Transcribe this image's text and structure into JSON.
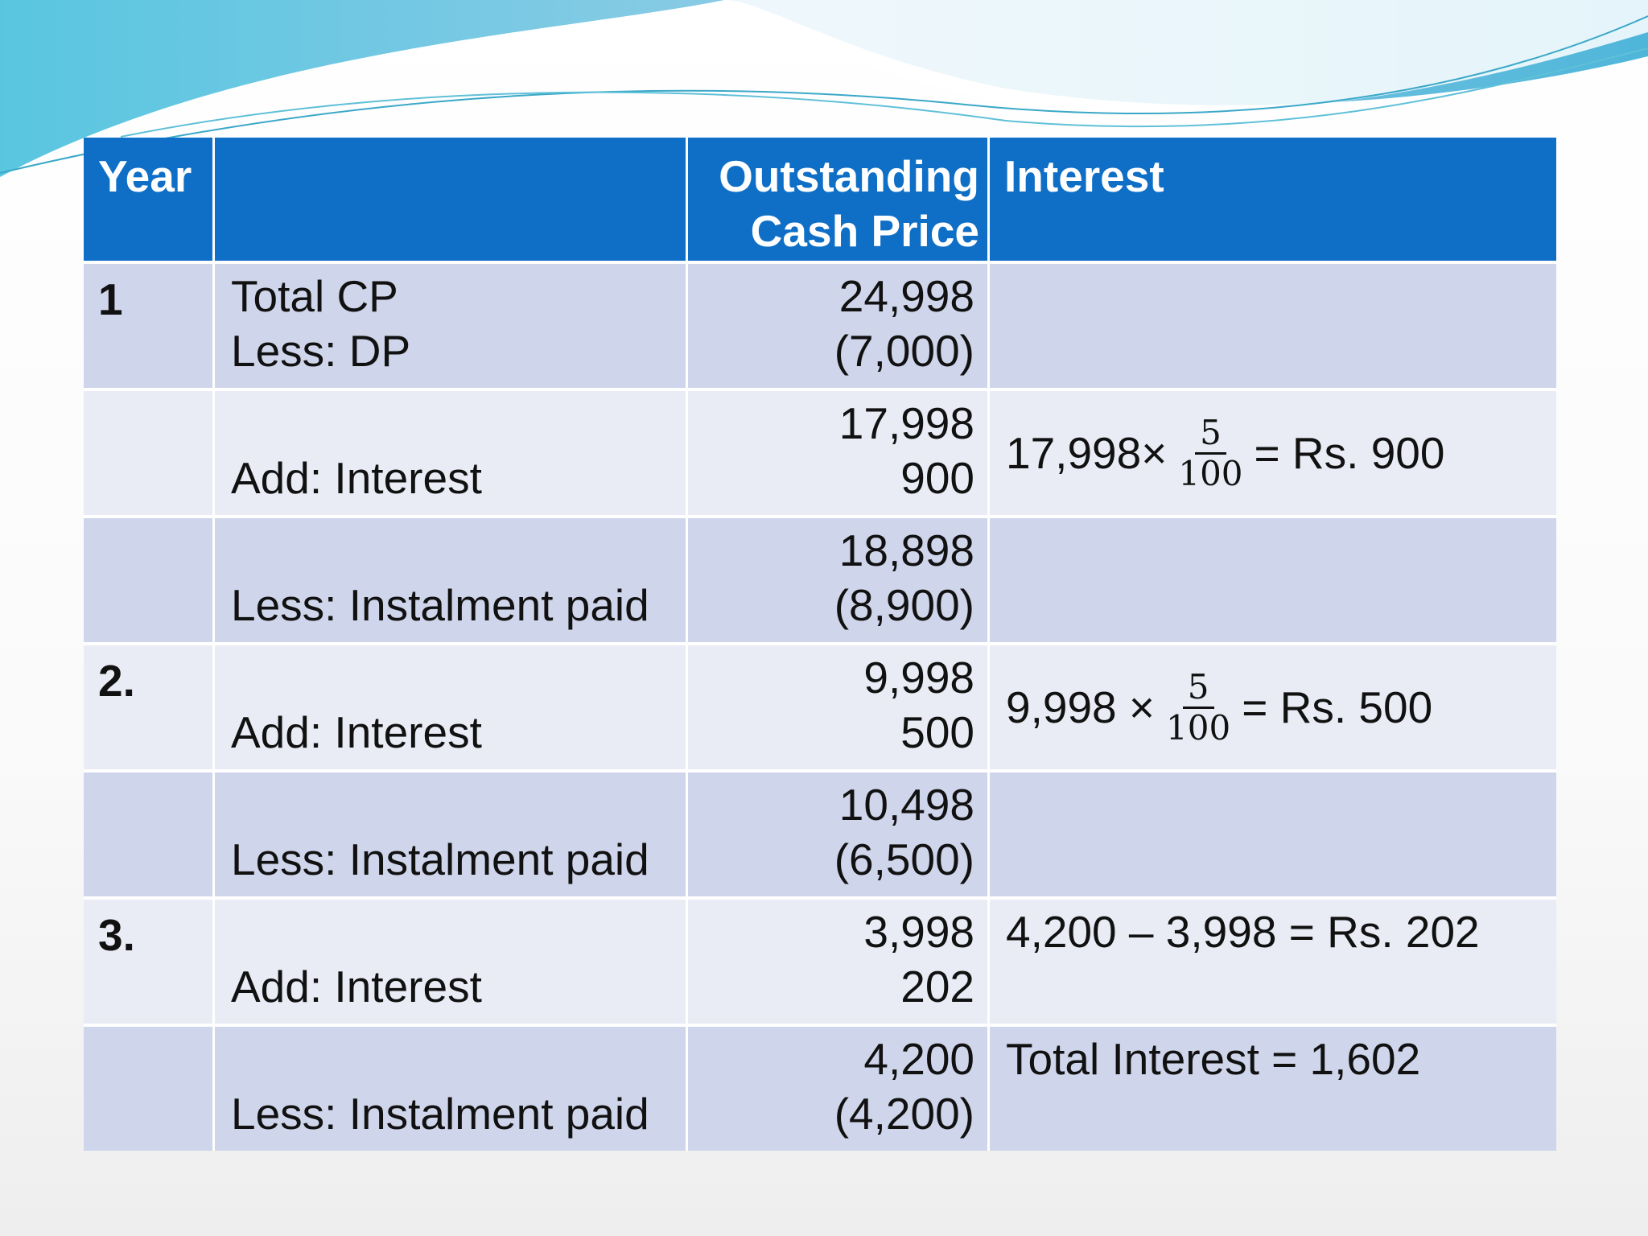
{
  "table": {
    "header": {
      "year": "Year",
      "outstanding": [
        "Outstanding",
        "Cash Price"
      ],
      "interest": "Interest"
    },
    "rows": [
      {
        "year": "1",
        "items": [
          "Total CP",
          "Less: DP"
        ],
        "amounts": [
          "24,998",
          "(7,000)"
        ]
      },
      {
        "items": [
          "Add: Interest"
        ],
        "amounts": [
          "17,998",
          "900"
        ],
        "interest": {
          "lead": "17,998×",
          "numerator": "5",
          "denominator": "100",
          "result": "= Rs. 900"
        }
      },
      {
        "items": [
          "Less: Instalment paid"
        ],
        "amounts": [
          "18,898",
          "(8,900)"
        ]
      },
      {
        "year": "2.",
        "items": [
          "Add: Interest"
        ],
        "amounts": [
          "9,998",
          "500"
        ],
        "interest": {
          "lead": "9,998 ×",
          "numerator": "5",
          "denominator": "100",
          "result": "= Rs. 500"
        }
      },
      {
        "items": [
          "Less: Instalment paid"
        ],
        "amounts": [
          "10,498",
          "(6,500)"
        ]
      },
      {
        "year": "3.",
        "items": [
          "Add: Interest"
        ],
        "amounts": [
          "3,998",
          "202"
        ],
        "interest": {
          "text": "4,200 – 3,998 = Rs. 202"
        }
      },
      {
        "items": [
          "Less: Instalment paid"
        ],
        "amounts": [
          "4,200",
          "(4,200)"
        ],
        "interest": {
          "text": "Total Interest = 1,602"
        }
      }
    ]
  }
}
